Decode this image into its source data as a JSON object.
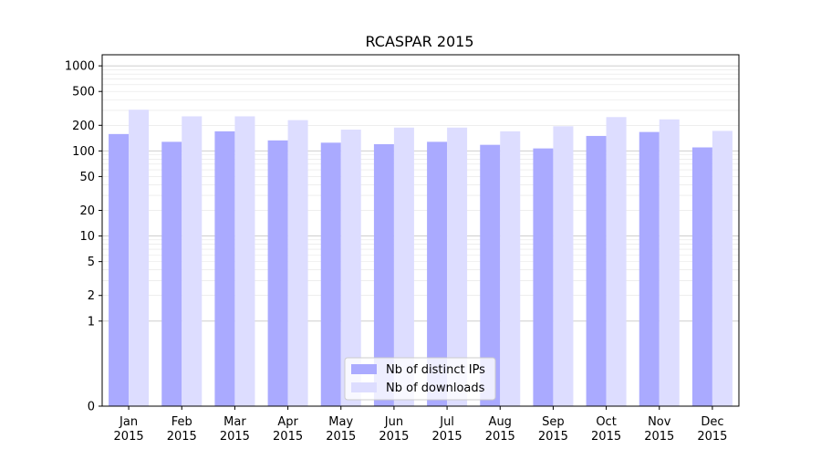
{
  "chart_data": {
    "type": "bar",
    "title": "RCASPAR 2015",
    "xlabel": "",
    "ylabel": "",
    "yscale": "symlog",
    "yticks": [
      0,
      1,
      2,
      5,
      10,
      20,
      50,
      100,
      200,
      500,
      1000
    ],
    "ylim": [
      0,
      1350
    ],
    "grid": true,
    "legend_position": "bottom-center",
    "categories": [
      [
        "Jan",
        "2015"
      ],
      [
        "Feb",
        "2015"
      ],
      [
        "Mar",
        "2015"
      ],
      [
        "Apr",
        "2015"
      ],
      [
        "May",
        "2015"
      ],
      [
        "Jun",
        "2015"
      ],
      [
        "Jul",
        "2015"
      ],
      [
        "Aug",
        "2015"
      ],
      [
        "Sep",
        "2015"
      ],
      [
        "Oct",
        "2015"
      ],
      [
        "Nov",
        "2015"
      ],
      [
        "Dec",
        "2015"
      ]
    ],
    "series": [
      {
        "name": "Nb of distinct IPs",
        "color": "#aaaaff",
        "values": [
          158,
          128,
          170,
          133,
          125,
          120,
          128,
          118,
          107,
          150,
          167,
          110
        ]
      },
      {
        "name": "Nb of downloads",
        "color": "#ddddff",
        "values": [
          305,
          255,
          255,
          230,
          178,
          188,
          188,
          170,
          195,
          250,
          235,
          172
        ]
      }
    ]
  }
}
